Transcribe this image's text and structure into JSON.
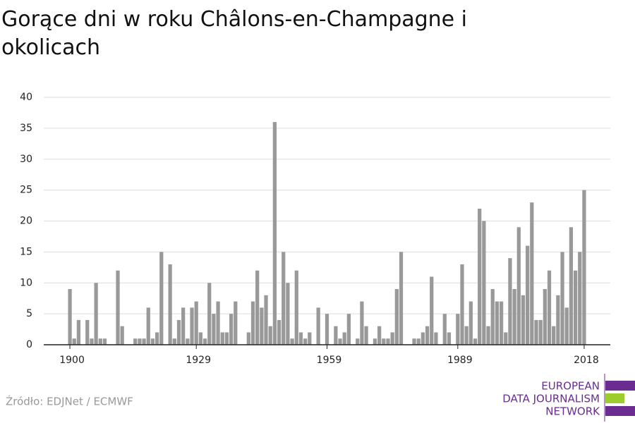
{
  "chart_data": {
    "type": "bar",
    "title": "Gorące dni w roku Châlons-en-Champagne i okolicach",
    "source": "Źródło: EDJNet / ECMWF",
    "logo": [
      "EUROPEAN",
      "DATA JOURNALISM",
      "NETWORK"
    ],
    "color": "#999999",
    "x": [
      1900,
      1901,
      1902,
      1903,
      1904,
      1905,
      1906,
      1907,
      1908,
      1909,
      1910,
      1911,
      1912,
      1913,
      1914,
      1915,
      1916,
      1917,
      1918,
      1919,
      1920,
      1921,
      1922,
      1923,
      1924,
      1925,
      1926,
      1927,
      1928,
      1929,
      1930,
      1931,
      1932,
      1933,
      1934,
      1935,
      1936,
      1937,
      1938,
      1939,
      1940,
      1941,
      1942,
      1943,
      1944,
      1945,
      1946,
      1947,
      1948,
      1949,
      1950,
      1951,
      1952,
      1953,
      1954,
      1955,
      1956,
      1957,
      1958,
      1959,
      1960,
      1961,
      1962,
      1963,
      1964,
      1965,
      1966,
      1967,
      1968,
      1969,
      1970,
      1971,
      1972,
      1973,
      1974,
      1975,
      1976,
      1977,
      1978,
      1979,
      1980,
      1981,
      1982,
      1983,
      1984,
      1985,
      1986,
      1987,
      1988,
      1989,
      1990,
      1991,
      1992,
      1993,
      1994,
      1995,
      1996,
      1997,
      1998,
      1999,
      2000,
      2001,
      2002,
      2003,
      2004,
      2005,
      2006,
      2007,
      2008,
      2009,
      2010,
      2011,
      2012,
      2013,
      2014,
      2015,
      2016,
      2017,
      2018
    ],
    "values": [
      9,
      1,
      4,
      0,
      4,
      1,
      10,
      1,
      1,
      0,
      0,
      12,
      3,
      0,
      0,
      1,
      1,
      1,
      6,
      1,
      2,
      15,
      0,
      13,
      1,
      4,
      6,
      1,
      6,
      7,
      2,
      1,
      10,
      5,
      7,
      2,
      2,
      5,
      7,
      0,
      0,
      2,
      7,
      12,
      6,
      8,
      3,
      36,
      4,
      15,
      10,
      1,
      12,
      2,
      1,
      2,
      0,
      6,
      0,
      5,
      0,
      3,
      1,
      2,
      5,
      0,
      1,
      7,
      3,
      0,
      1,
      3,
      1,
      1,
      2,
      9,
      15,
      0,
      0,
      1,
      1,
      2,
      3,
      11,
      2,
      0,
      5,
      2,
      0,
      5,
      13,
      3,
      7,
      1,
      22,
      20,
      3,
      9,
      7,
      7,
      2,
      14,
      9,
      19,
      8,
      16,
      23,
      4,
      4,
      9,
      12,
      3,
      8,
      15,
      6,
      19,
      12,
      15,
      25
    ],
    "xlim": [
      1894,
      2024
    ],
    "xticks": [
      1900,
      1929,
      1959,
      1989,
      2018
    ],
    "ylim": [
      0,
      40
    ],
    "yticks": [
      0,
      5,
      10,
      15,
      20,
      25,
      30,
      35,
      40
    ],
    "grid": true
  }
}
